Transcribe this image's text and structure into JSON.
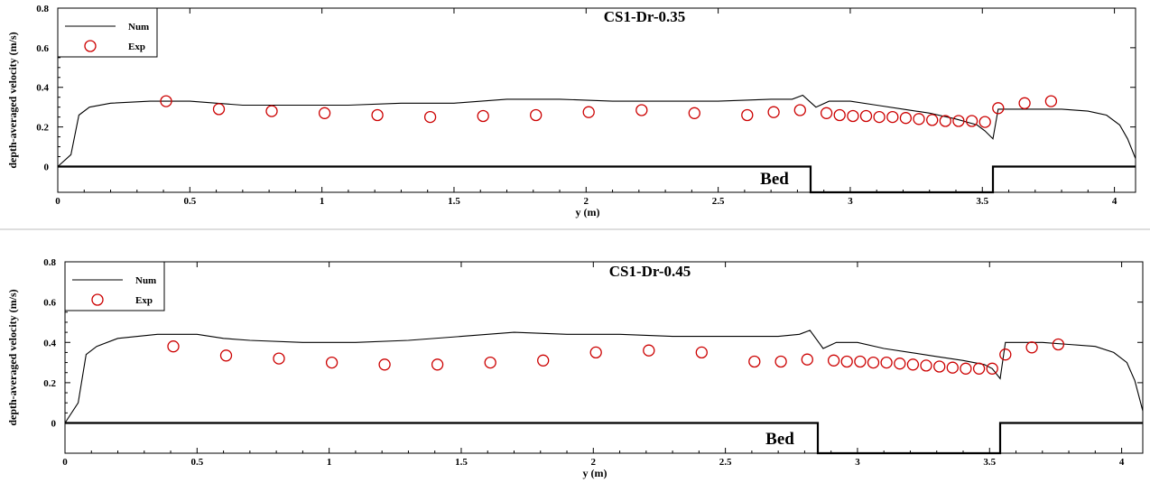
{
  "chart_data": [
    {
      "type": "line",
      "title": "CS1-Dr-0.35",
      "xlabel": "y (m)",
      "ylabel": "depth-averaged velocity (m/s)",
      "xlim": [
        0,
        4.08
      ],
      "ylim": [
        -0.13,
        0.8
      ],
      "xticks": [
        0,
        0.5,
        1,
        1.5,
        2,
        2.5,
        3,
        3.5,
        4
      ],
      "xtick_labels": [
        "0",
        "0.5",
        "1",
        "1.5",
        "2",
        "2.5",
        "3",
        "3.5",
        "4"
      ],
      "yticks": [
        0,
        0.2,
        0.4,
        0.6,
        0.8
      ],
      "ytick_labels": [
        "0",
        "0.2",
        "0.4",
        "0.6",
        "0.8"
      ],
      "legend_position": "top-left",
      "annotation": "Bed",
      "series": [
        {
          "name": "Num",
          "style": "line",
          "color": "#000000",
          "x": [
            0,
            0.05,
            0.08,
            0.12,
            0.2,
            0.35,
            0.5,
            0.7,
            0.9,
            1.1,
            1.3,
            1.5,
            1.7,
            1.9,
            2.1,
            2.3,
            2.5,
            2.7,
            2.78,
            2.82,
            2.87,
            2.92,
            3.0,
            3.1,
            3.2,
            3.3,
            3.4,
            3.48,
            3.51,
            3.54,
            3.56,
            3.6,
            3.7,
            3.8,
            3.9,
            3.97,
            4.02,
            4.05,
            4.08
          ],
          "y": [
            0.0,
            0.06,
            0.26,
            0.3,
            0.32,
            0.33,
            0.33,
            0.31,
            0.31,
            0.31,
            0.32,
            0.32,
            0.34,
            0.34,
            0.33,
            0.33,
            0.33,
            0.34,
            0.34,
            0.36,
            0.3,
            0.33,
            0.33,
            0.31,
            0.29,
            0.27,
            0.24,
            0.21,
            0.18,
            0.14,
            0.29,
            0.29,
            0.29,
            0.29,
            0.28,
            0.26,
            0.21,
            0.14,
            0.04
          ]
        },
        {
          "name": "Exp",
          "style": "marker",
          "color": "#cc0000",
          "x": [
            0.41,
            0.61,
            0.81,
            1.01,
            1.21,
            1.41,
            1.61,
            1.81,
            2.01,
            2.21,
            2.41,
            2.61,
            2.71,
            2.81,
            2.91,
            2.96,
            3.01,
            3.06,
            3.11,
            3.16,
            3.21,
            3.26,
            3.31,
            3.36,
            3.41,
            3.46,
            3.51,
            3.56,
            3.66,
            3.76
          ],
          "y": [
            0.33,
            0.29,
            0.28,
            0.27,
            0.26,
            0.25,
            0.255,
            0.26,
            0.275,
            0.285,
            0.27,
            0.26,
            0.275,
            0.285,
            0.27,
            0.26,
            0.255,
            0.255,
            0.25,
            0.25,
            0.245,
            0.24,
            0.235,
            0.23,
            0.23,
            0.23,
            0.225,
            0.295,
            0.32,
            0.33
          ]
        },
        {
          "name": "Bed",
          "style": "bed",
          "color": "#000000",
          "x": [
            0,
            2.85,
            2.85,
            3.54,
            3.54,
            4.08
          ],
          "y": [
            0,
            0,
            -0.13,
            -0.13,
            0,
            0
          ]
        }
      ]
    },
    {
      "type": "line",
      "title": "CS1-Dr-0.45",
      "xlabel": "y (m)",
      "ylabel": "depth-averaged velocity (m/s)",
      "xlim": [
        0,
        4.08
      ],
      "ylim": [
        -0.15,
        0.8
      ],
      "xticks": [
        0,
        0.5,
        1,
        1.5,
        2,
        2.5,
        3,
        3.5,
        4
      ],
      "xtick_labels": [
        "0",
        "0.5",
        "1",
        "1.5",
        "2",
        "2.5",
        "3",
        "3.5",
        "4"
      ],
      "yticks": [
        0,
        0.2,
        0.4,
        0.6,
        0.8
      ],
      "ytick_labels": [
        "0",
        "0.2",
        "0.4",
        "0.6",
        "0.8"
      ],
      "legend_position": "top-left",
      "annotation": "Bed",
      "series": [
        {
          "name": "Num",
          "style": "line",
          "color": "#000000",
          "x": [
            0,
            0.05,
            0.08,
            0.12,
            0.2,
            0.35,
            0.5,
            0.6,
            0.7,
            0.9,
            1.1,
            1.3,
            1.5,
            1.7,
            1.9,
            2.1,
            2.3,
            2.5,
            2.7,
            2.78,
            2.82,
            2.87,
            2.92,
            3.0,
            3.1,
            3.2,
            3.3,
            3.4,
            3.48,
            3.51,
            3.54,
            3.56,
            3.6,
            3.7,
            3.8,
            3.9,
            3.97,
            4.02,
            4.05,
            4.08
          ],
          "y": [
            0.0,
            0.1,
            0.34,
            0.38,
            0.42,
            0.44,
            0.44,
            0.42,
            0.41,
            0.4,
            0.4,
            0.41,
            0.43,
            0.45,
            0.44,
            0.44,
            0.43,
            0.43,
            0.43,
            0.44,
            0.46,
            0.37,
            0.4,
            0.4,
            0.37,
            0.35,
            0.33,
            0.31,
            0.29,
            0.27,
            0.22,
            0.4,
            0.4,
            0.4,
            0.39,
            0.38,
            0.35,
            0.3,
            0.21,
            0.06
          ]
        },
        {
          "name": "Exp",
          "style": "marker",
          "color": "#cc0000",
          "x": [
            0.41,
            0.61,
            0.81,
            1.01,
            1.21,
            1.41,
            1.61,
            1.81,
            2.01,
            2.21,
            2.41,
            2.61,
            2.71,
            2.81,
            2.91,
            2.96,
            3.01,
            3.06,
            3.11,
            3.16,
            3.21,
            3.26,
            3.31,
            3.36,
            3.41,
            3.46,
            3.51,
            3.56,
            3.66,
            3.76
          ],
          "y": [
            0.38,
            0.335,
            0.32,
            0.3,
            0.29,
            0.29,
            0.3,
            0.31,
            0.35,
            0.36,
            0.35,
            0.305,
            0.305,
            0.315,
            0.31,
            0.305,
            0.305,
            0.3,
            0.3,
            0.295,
            0.29,
            0.285,
            0.28,
            0.275,
            0.27,
            0.27,
            0.27,
            0.34,
            0.375,
            0.39
          ]
        },
        {
          "name": "Bed",
          "style": "bed",
          "color": "#000000",
          "x": [
            0,
            2.85,
            2.85,
            3.54,
            3.54,
            4.08
          ],
          "y": [
            0,
            0,
            -0.15,
            -0.15,
            0,
            0
          ]
        }
      ]
    }
  ]
}
